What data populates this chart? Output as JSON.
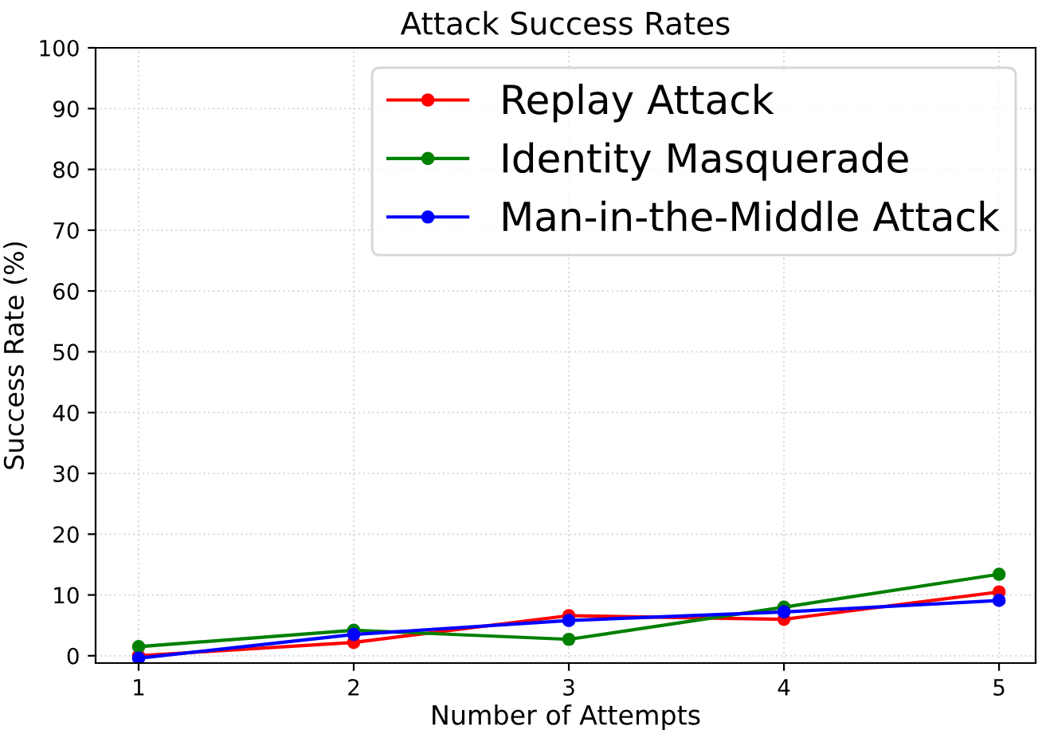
{
  "chart_data": {
    "type": "line",
    "title": "Attack Success Rates",
    "xlabel": "Number of Attempts",
    "ylabel": "Success Rate (%)",
    "x": [
      1,
      2,
      3,
      4,
      5
    ],
    "series": [
      {
        "name": "Replay Attack",
        "color": "#ff0000",
        "values": [
          0,
          2.2,
          6.6,
          6.0,
          10.5
        ]
      },
      {
        "name": "Identity Masquerade",
        "color": "#008000",
        "values": [
          1.5,
          4.2,
          2.7,
          8.0,
          13.4
        ]
      },
      {
        "name": "Man-in-the-Middle Attack",
        "color": "#0000ff",
        "values": [
          -0.4,
          3.5,
          5.8,
          7.2,
          9.1
        ]
      }
    ],
    "xlim": [
      0.8,
      5.17
    ],
    "ylim": [
      -1.2,
      100
    ],
    "xticks": [
      1,
      2,
      3,
      4,
      5
    ],
    "yticks": [
      0,
      10,
      20,
      30,
      40,
      50,
      60,
      70,
      80,
      90,
      100
    ],
    "grid": true,
    "legend": "top right",
    "marker": "circle",
    "line_style": "solid"
  }
}
